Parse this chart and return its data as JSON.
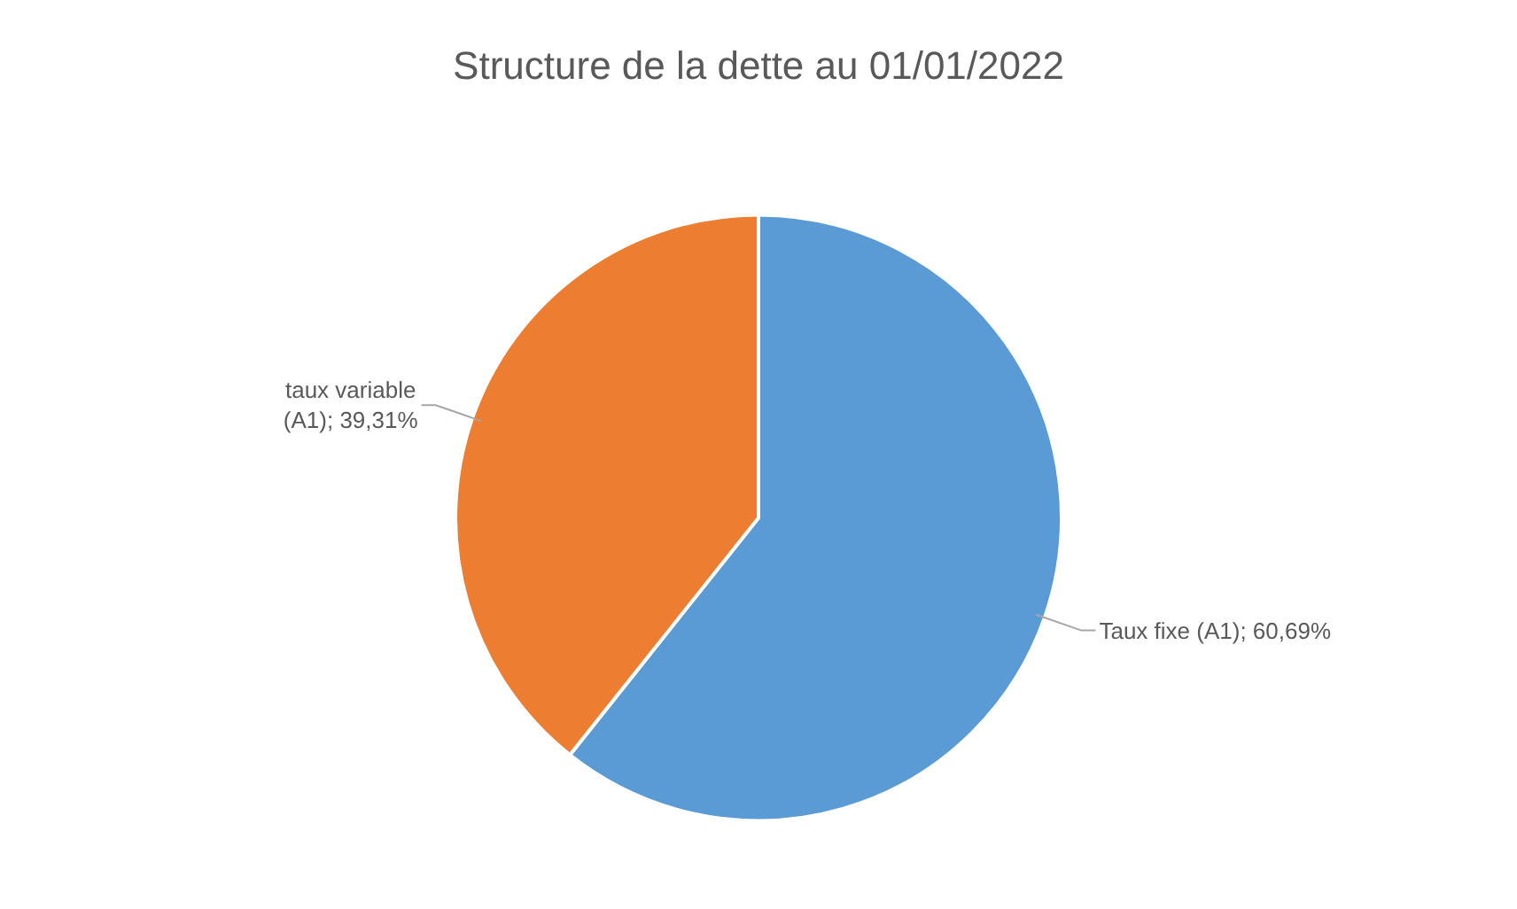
{
  "chart_data": {
    "type": "pie",
    "title": "Structure de la dette au 01/01/2022",
    "categories": [
      "Taux fixe (A1)",
      "taux variable (A1)"
    ],
    "values": [
      60.69,
      39.31
    ],
    "value_labels": [
      "60,69%",
      "39,31%"
    ],
    "colors": [
      "#5b9bd5",
      "#ed7d31"
    ],
    "legend": false
  }
}
